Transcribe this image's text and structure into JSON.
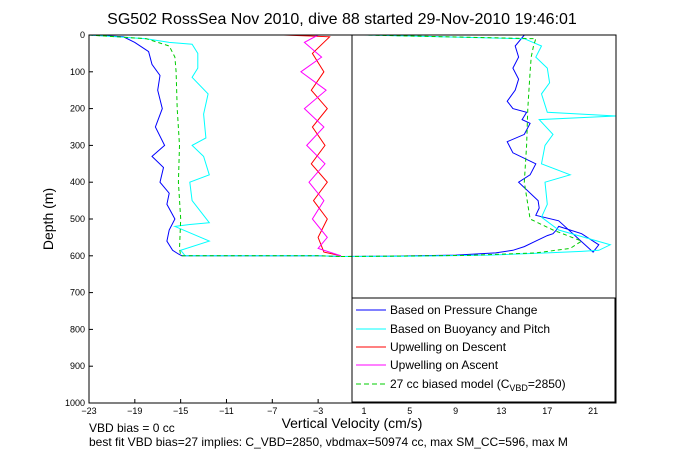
{
  "figure": {
    "title": "SG502 RossSea Nov 2010, dive 88 started 29-Nov-2010 19:46:01",
    "notes": [
      "VBD bias = 0 cc",
      "best fit VBD bias=27 implies: C_VBD=2850, vbdmax=50974 cc, max SM_CC=596, max M"
    ]
  },
  "chart_data": {
    "type": "line",
    "title": "SG502 RossSea Nov 2010, dive 88 started 29-Nov-2010 19:46:01",
    "xlabel": "Vertical Velocity (cm/s)",
    "ylabel": "Depth (m)",
    "xlim": [
      -23,
      23
    ],
    "ylim": [
      1000,
      0
    ],
    "y_reversed": true,
    "xticks": [
      -23,
      -19,
      -15,
      -11,
      -7,
      -3,
      1,
      5,
      9,
      13,
      17,
      21
    ],
    "yticks": [
      0,
      100,
      200,
      300,
      400,
      500,
      600,
      700,
      800,
      900,
      1000
    ],
    "grid": false,
    "legend_position": "bottom-right",
    "legend": [
      {
        "label": "Based on Pressure Change",
        "color": "#0000ff",
        "style": "solid"
      },
      {
        "label": "Based on Buoyancy and Pitch",
        "color": "#00ffff",
        "style": "solid"
      },
      {
        "label": "Upwelling on Descent",
        "color": "#ff0000",
        "style": "solid"
      },
      {
        "label": "Upwelling on Ascent",
        "color": "#ff00ff",
        "style": "solid"
      },
      {
        "label_prefix": "27 cc biased model (C",
        "label_sub": "VBD",
        "label_suffix": "=2850)",
        "color": "#00cc00",
        "style": "dashed"
      }
    ],
    "series": [
      {
        "name": "Based on Pressure Change (descent)",
        "color": "#0000ff",
        "x": [
          -23,
          -20,
          -19,
          -17.8,
          -17.5,
          -16.8,
          -17,
          -16.6,
          -17.2,
          -16.4,
          -17.5,
          -16.5,
          -16.8,
          -16,
          -16.2,
          -15.5,
          -16,
          -16.2,
          -15.7,
          -15.2,
          -14.9,
          -3,
          -1
        ],
        "y": [
          0,
          5,
          20,
          45,
          80,
          110,
          150,
          200,
          250,
          300,
          330,
          360,
          400,
          430,
          460,
          500,
          530,
          560,
          585,
          595,
          600,
          600,
          602
        ]
      },
      {
        "name": "Based on Pressure Change (ascent)",
        "color": "#0000ff",
        "x": [
          -1,
          3,
          9,
          12.5,
          14,
          15,
          16,
          17,
          17.5,
          17.8,
          18,
          20,
          21.5,
          21,
          18,
          16,
          16.3,
          16.2,
          14.5,
          15.5,
          16,
          14,
          13.5,
          15,
          15.5,
          14.8,
          15.2,
          14,
          13.5,
          14.2,
          14.5,
          14,
          14.5,
          14.2,
          15
        ],
        "y": [
          602,
          601,
          598,
          592,
          585,
          575,
          560,
          545,
          540,
          530,
          520,
          540,
          570,
          590,
          505,
          490,
          470,
          450,
          400,
          380,
          350,
          320,
          290,
          270,
          240,
          230,
          210,
          200,
          180,
          150,
          120,
          90,
          60,
          30,
          0
        ]
      },
      {
        "name": "Based on Buoyancy and Pitch (descent)",
        "color": "#00ffff",
        "x": [
          -23,
          -18,
          -16,
          -14,
          -13.5,
          -13.5,
          -14,
          -12.6,
          -13,
          -12.8,
          -14,
          -13,
          -12.5,
          -14.2,
          -14,
          -12.5,
          -14.2,
          -15.5,
          -12.5,
          -15,
          -14.6,
          -3,
          -1
        ],
        "y": [
          0,
          10,
          20,
          25,
          50,
          90,
          115,
          160,
          215,
          280,
          300,
          330,
          380,
          400,
          450,
          510,
          515,
          520,
          560,
          585,
          600,
          600,
          602
        ]
      },
      {
        "name": "Based on Buoyancy and Pitch (ascent)",
        "color": "#00ffff",
        "x": [
          -1,
          5,
          12,
          17,
          20,
          21.5,
          22.5,
          18,
          16.5,
          17,
          16.8,
          19,
          16.5,
          16.8,
          17.5,
          16.3,
          23,
          17,
          16.5,
          17.2,
          17,
          16,
          16.5,
          15,
          1
        ],
        "y": [
          602,
          601,
          598,
          592,
          588,
          585,
          570,
          530,
          495,
          460,
          400,
          380,
          350,
          300,
          270,
          230,
          220,
          210,
          160,
          130,
          90,
          60,
          30,
          10,
          0
        ]
      },
      {
        "name": "Upwelling on Descent",
        "color": "#ff0000",
        "x": [
          -6,
          -2,
          -3.5,
          -2.5,
          -3.6,
          -2.2,
          -3.5,
          -2.4,
          -3.6,
          -2.2,
          -3.4,
          -2.2,
          -3,
          -2.5,
          -1
        ],
        "y": [
          0,
          5,
          50,
          100,
          150,
          200,
          250,
          300,
          350,
          400,
          450,
          500,
          550,
          590,
          600
        ]
      },
      {
        "name": "Upwelling on Ascent",
        "color": "#ff00ff",
        "x": [
          -3,
          -4.2,
          -2.7,
          -4.5,
          -2.3,
          -4.2,
          -2.5,
          -4,
          -2.4,
          -3.8,
          -2.5,
          -3.5,
          -2.2,
          -3,
          -1
        ],
        "y": [
          0,
          20,
          60,
          100,
          150,
          200,
          250,
          300,
          350,
          400,
          450,
          500,
          550,
          580,
          600
        ]
      },
      {
        "name": "27 cc biased model (descent)",
        "color": "#00cc00",
        "dashed": true,
        "x": [
          -23,
          -18,
          -16,
          -15.5,
          -15.4,
          -15.3,
          -15.1,
          -15.2,
          -15,
          -15.1,
          -15,
          -3,
          -1
        ],
        "y": [
          0,
          10,
          30,
          60,
          100,
          200,
          300,
          400,
          500,
          580,
          600,
          600,
          602
        ]
      },
      {
        "name": "27 cc biased model (ascent)",
        "color": "#00cc00",
        "dashed": true,
        "x": [
          -1,
          10,
          16,
          19,
          20,
          17.5,
          15.5,
          15,
          15.2,
          15.3,
          15.5,
          15.6,
          15.8,
          16,
          1
        ],
        "y": [
          602,
          599,
          592,
          580,
          560,
          530,
          500,
          400,
          300,
          200,
          100,
          60,
          30,
          10,
          0
        ]
      }
    ]
  }
}
